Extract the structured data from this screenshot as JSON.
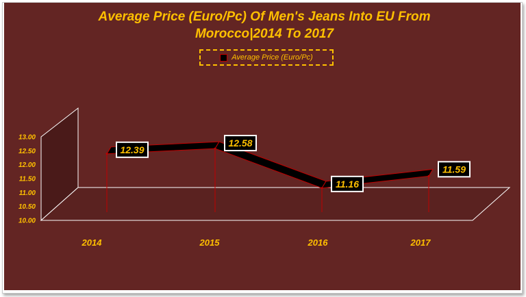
{
  "chart_data": {
    "type": "line",
    "title": "Average Price (Euro/Pc) Of Men's Jeans Into EU From Morocco|2014 To 2017",
    "title_lines": [
      "Average Price (Euro/Pc) Of Men's Jeans Into EU From",
      "Morocco|2014 To 2017"
    ],
    "categories": [
      "2014",
      "2015",
      "2016",
      "2017"
    ],
    "series": [
      {
        "name": "Average Price (Euro/Pc)",
        "values": [
          12.39,
          12.58,
          11.16,
          11.59
        ]
      }
    ],
    "data_labels": [
      "12.39",
      "12.58",
      "11.16",
      "11.59"
    ],
    "ylim": [
      10.0,
      13.0
    ],
    "yticks": [
      "10.00",
      "10.50",
      "11.00",
      "11.50",
      "12.00",
      "12.50",
      "13.00"
    ],
    "legend_position": "top",
    "grid": false,
    "style": "3d-line",
    "colors": {
      "background": "#632523",
      "text": "#ffc000",
      "line": "#000000",
      "edge": "#c00000"
    }
  }
}
